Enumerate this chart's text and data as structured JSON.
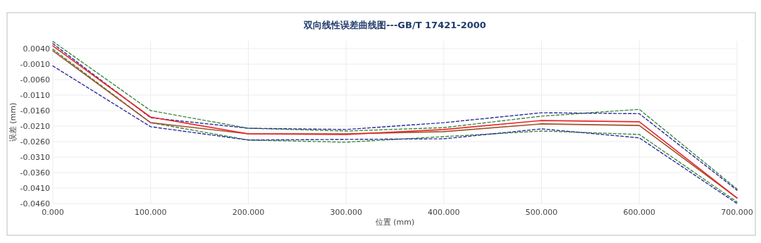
{
  "chart_data": {
    "type": "line",
    "title": "双向线性误差曲线图---GB/T  17421-2000",
    "xlabel": "位置 (mm)",
    "ylabel": "误差 (mm)",
    "x": [
      0,
      100,
      200,
      300,
      400,
      500,
      600,
      700
    ],
    "xlim": [
      0,
      700
    ],
    "xticks": [
      {
        "value": 0,
        "label": "0.000"
      },
      {
        "value": 100,
        "label": "100.000"
      },
      {
        "value": 200,
        "label": "200.000"
      },
      {
        "value": 300,
        "label": "300.000"
      },
      {
        "value": 400,
        "label": "400.000"
      },
      {
        "value": 500,
        "label": "500.000"
      },
      {
        "value": 600,
        "label": "600.000"
      },
      {
        "value": 700,
        "label": "700.000"
      }
    ],
    "ylim": [
      -0.046,
      0.0065
    ],
    "yticks": [
      {
        "value": 0.004,
        "label": "0.0040"
      },
      {
        "value": -0.001,
        "label": "-0.0010"
      },
      {
        "value": -0.006,
        "label": "-0.0060"
      },
      {
        "value": -0.011,
        "label": "-0.0110"
      },
      {
        "value": -0.016,
        "label": "-0.0160"
      },
      {
        "value": -0.021,
        "label": "-0.0210"
      },
      {
        "value": -0.026,
        "label": "-0.0260"
      },
      {
        "value": -0.031,
        "label": "-0.0310"
      },
      {
        "value": -0.036,
        "label": "-0.0360"
      },
      {
        "value": -0.041,
        "label": "-0.0410"
      },
      {
        "value": -0.046,
        "label": "-0.0460"
      }
    ],
    "grid": true,
    "series": [
      {
        "color": "#3a8a3a",
        "line_style": "dashed",
        "values": [
          0.0063,
          -0.016,
          -0.0217,
          -0.0226,
          -0.0215,
          -0.0178,
          -0.0156,
          -0.0413
        ]
      },
      {
        "color": "#2c2ca0",
        "line_style": "dashed",
        "values": [
          0.0056,
          -0.0183,
          -0.0217,
          -0.0221,
          -0.0199,
          -0.0167,
          -0.017,
          -0.0417
        ]
      },
      {
        "color": "#3a8a3a",
        "line_style": "dashed",
        "values": [
          0.0038,
          -0.0199,
          -0.0255,
          -0.0262,
          -0.0244,
          -0.0226,
          -0.0237,
          -0.0455
        ]
      },
      {
        "color": "#2c2ca0",
        "line_style": "dashed",
        "values": [
          -0.0016,
          -0.0212,
          -0.0255,
          -0.0253,
          -0.0251,
          -0.0219,
          -0.0248,
          -0.046
        ]
      },
      {
        "color": "#a0522d",
        "line_style": "solid",
        "values": [
          0.0033,
          -0.0199,
          -0.0235,
          -0.0235,
          -0.0228,
          -0.0203,
          -0.0208,
          -0.0442
        ]
      },
      {
        "color": "#e8262a",
        "line_style": "solid",
        "values": [
          0.0049,
          -0.0181,
          -0.0235,
          -0.0237,
          -0.0221,
          -0.0192,
          -0.0196,
          -0.0442
        ]
      }
    ]
  }
}
